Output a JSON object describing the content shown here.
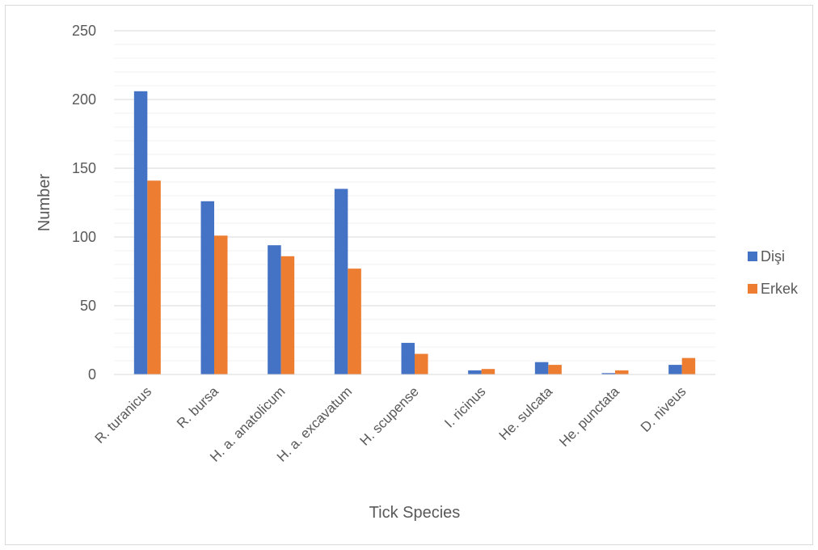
{
  "chart_data": {
    "type": "bar",
    "title": "",
    "xlabel": "Tick Species",
    "ylabel": "Number",
    "ylim": [
      0,
      250
    ],
    "yticks": [
      0,
      50,
      100,
      150,
      200,
      250
    ],
    "minor_grid_step": 10,
    "grid": true,
    "legend_position": "right",
    "categories": [
      "R. turanicus",
      "R. bursa",
      "H. a. anatolicum",
      "H. a. excavatum",
      "H. scupense",
      "I. ricinus",
      "He. sulcata",
      "He. punctata",
      "D. niveus"
    ],
    "series": [
      {
        "name": "Dişi",
        "color": "#4472C4",
        "values": [
          206,
          126,
          94,
          135,
          23,
          3,
          9,
          1,
          7
        ]
      },
      {
        "name": "Erkek",
        "color": "#ED7D31",
        "values": [
          141,
          101,
          86,
          77,
          15,
          4,
          7,
          3,
          12
        ]
      }
    ]
  }
}
